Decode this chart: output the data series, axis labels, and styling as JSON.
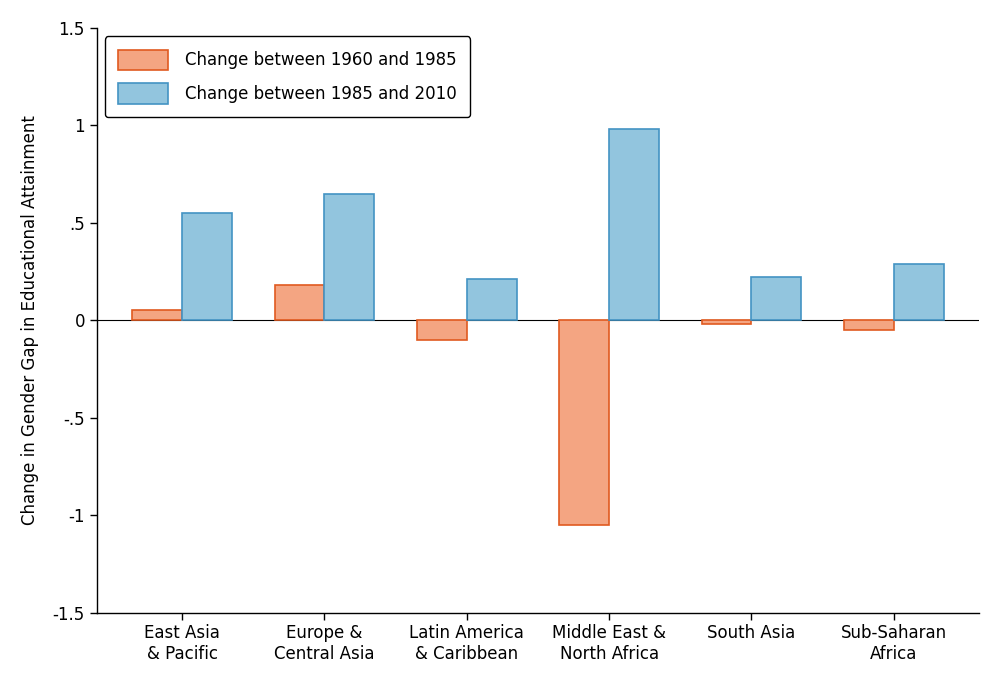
{
  "categories": [
    "East Asia\n& Pacific",
    "Europe &\nCentral Asia",
    "Latin America\n& Caribbean",
    "Middle East &\nNorth Africa",
    "South Asia",
    "Sub-Saharan\nAfrica"
  ],
  "change_1960_1985": [
    0.05,
    0.18,
    -0.1,
    -1.05,
    -0.02,
    -0.05
  ],
  "change_1985_2010": [
    0.55,
    0.65,
    0.21,
    0.98,
    0.22,
    0.29
  ],
  "color_1960_fill": "#F4A582",
  "color_1960_edge": "#E05A20",
  "color_1985_fill": "#92C5DE",
  "color_1985_edge": "#4393C3",
  "legend_label_1": "Change between 1960 and 1985",
  "legend_label_2": "Change between 1985 and 2010",
  "ylabel": "Change in Gender Gap in Educational Attainment",
  "ylim": [
    -1.5,
    1.5
  ],
  "yticks": [
    -1.5,
    -1.0,
    -0.5,
    0.0,
    0.5,
    1.0,
    1.5
  ],
  "ytick_labels": [
    "-1.5",
    "-1",
    "-.5",
    "0",
    ".5",
    "1",
    "1.5"
  ],
  "bar_width": 0.35,
  "background_color": "#FFFFFF",
  "axis_fontsize": 12,
  "tick_fontsize": 12,
  "legend_fontsize": 12
}
